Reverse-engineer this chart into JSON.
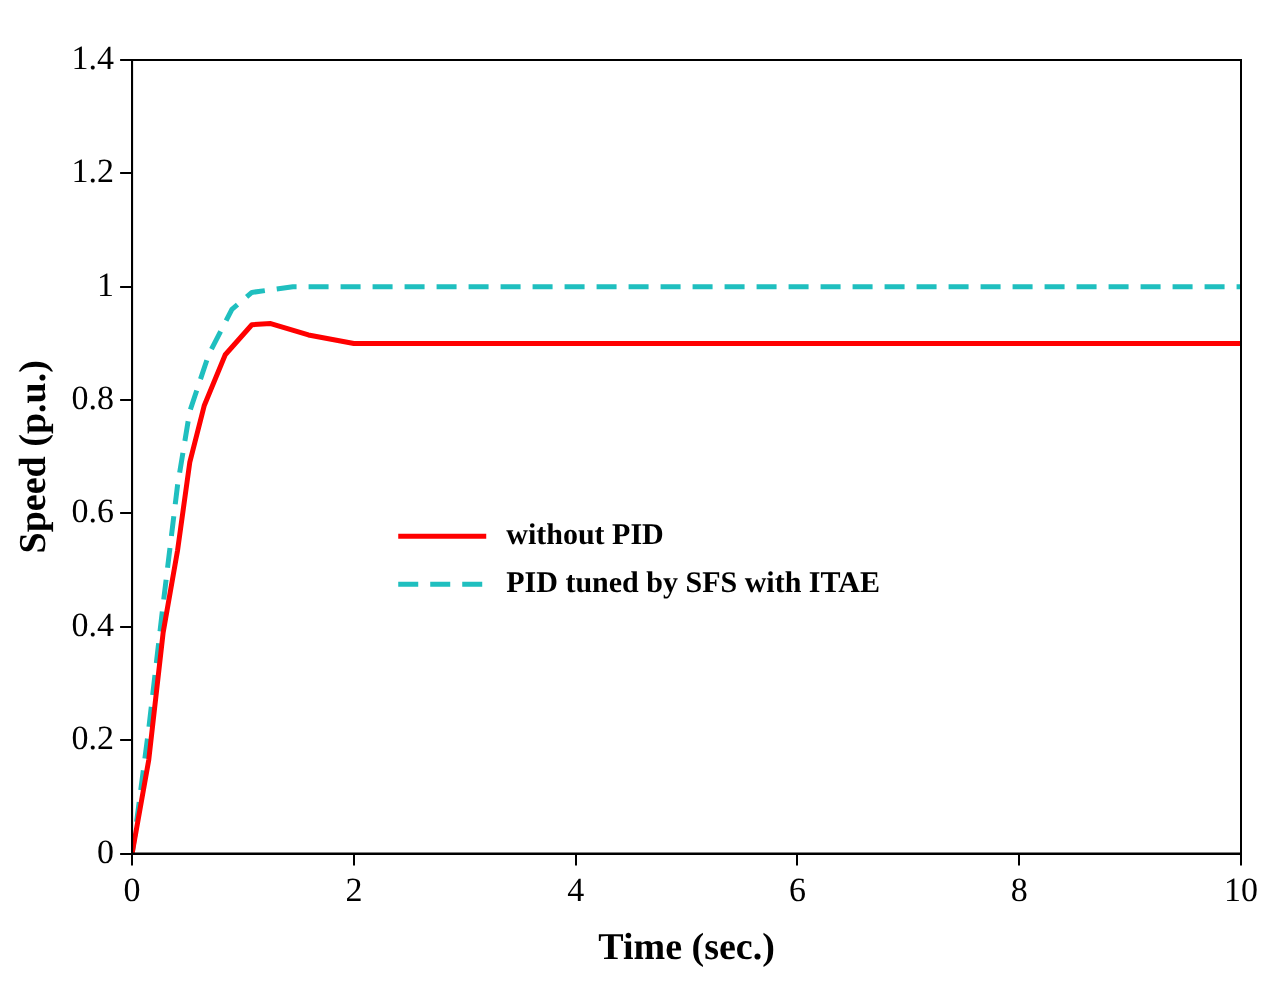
{
  "chart_data": {
    "type": "line",
    "xlabel": "Time (sec.)",
    "ylabel": "Speed (p.u.)",
    "xlim": [
      0,
      10
    ],
    "xticks": [
      0,
      2,
      4,
      6,
      8,
      10
    ],
    "ylim": [
      0,
      1.4
    ],
    "yticks": [
      0,
      0.2,
      0.4,
      0.6,
      0.8,
      1,
      1.2,
      1.4
    ],
    "grid": false,
    "legend": "center",
    "marker": "none",
    "series": [
      {
        "name": "without PID",
        "color": "#ff0000",
        "line_style": "solid",
        "x": [
          0,
          0.15,
          0.28,
          0.41,
          0.52,
          0.65,
          0.84,
          1.08,
          1.25,
          1.59,
          2,
          4,
          6,
          8,
          10
        ],
        "values": [
          0,
          0.165,
          0.39,
          0.535,
          0.69,
          0.79,
          0.88,
          0.933,
          0.935,
          0.915,
          0.9,
          0.9,
          0.9,
          0.9,
          0.9
        ]
      },
      {
        "name": "PID tuned by SFS with ITAE",
        "color": "#1fbfbf",
        "line_style": "dashed",
        "x": [
          0,
          0.03,
          0.15,
          0.28,
          0.41,
          0.52,
          0.69,
          0.9,
          1.08,
          1.45,
          2,
          4,
          6,
          8,
          10
        ],
        "values": [
          0,
          0.04,
          0.22,
          0.44,
          0.65,
          0.78,
          0.88,
          0.96,
          0.99,
          1,
          1,
          1,
          1,
          1,
          1
        ]
      }
    ]
  }
}
